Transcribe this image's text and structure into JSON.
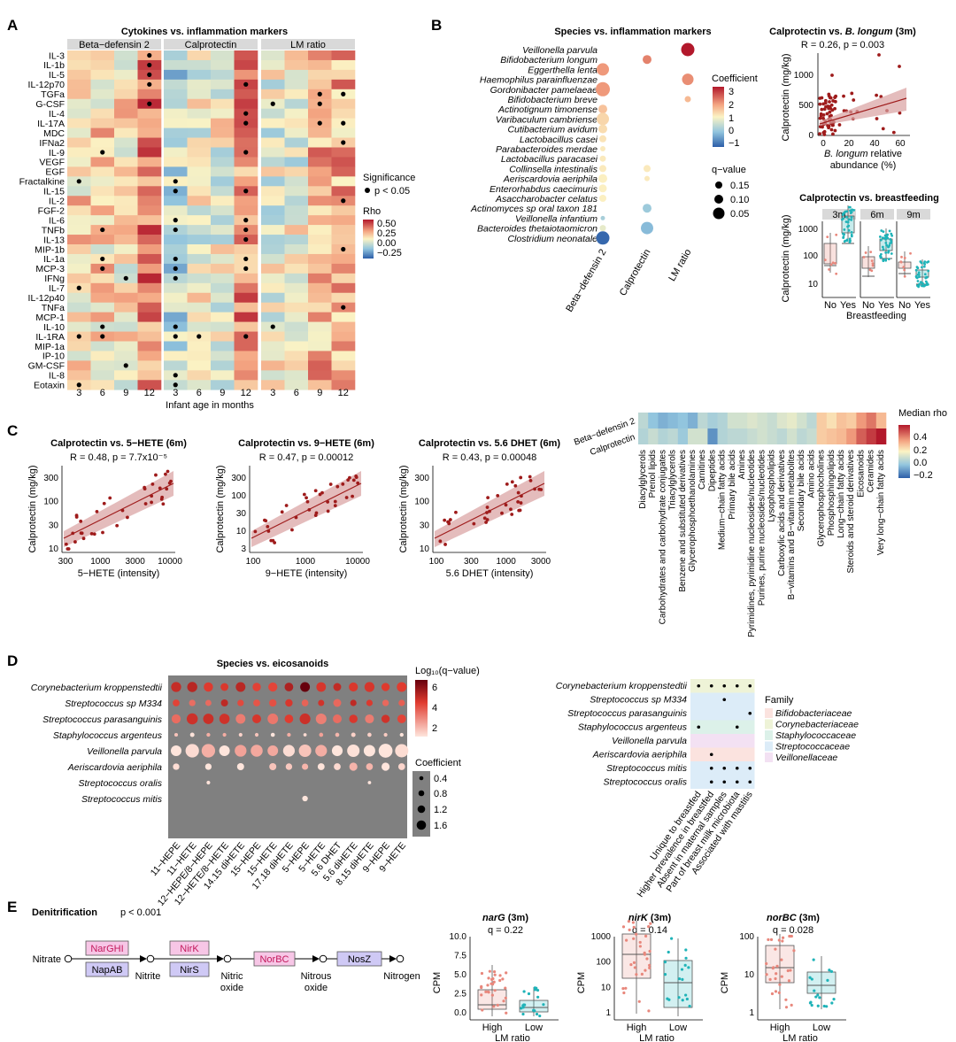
{
  "panels": {
    "A": {
      "letter": "A",
      "title": "Cytokines vs. inflammation markers",
      "facets": [
        "Beta−defensin 2",
        "Calprotectin",
        "LM ratio"
      ],
      "rows": [
        "IL-3",
        "IL-1b",
        "IL-5",
        "IL-12p70",
        "TGFa",
        "G-CSF",
        "IL-4",
        "IL-17A",
        "MDC",
        "IFNa2",
        "IL-9",
        "VEGF",
        "EGF",
        "Fractalkine",
        "IL-15",
        "IL-2",
        "FGF-2",
        "IL-6",
        "TNFb",
        "IL-13",
        "MIP-1b",
        "IL-1a",
        "MCP-3",
        "IFNg",
        "IL-7",
        "IL-12p40",
        "TNFa",
        "MCP-1",
        "IL-10",
        "IL-1RA",
        "MIP-1a",
        "IP-10",
        "GM-CSF",
        "IL-8",
        "Eotaxin"
      ],
      "ages": [
        "3",
        "6",
        "9",
        "12"
      ],
      "xlabel": "Infant age in months",
      "significance_title": "Significance",
      "significance_label": "p < 0.05",
      "rho_title": "Rho",
      "rho_ticks": [
        "0.50",
        "0.25",
        "0.00",
        "−0.25"
      ]
    },
    "B": {
      "letter": "B",
      "title": "Species vs. inflammation markers",
      "species": [
        "Veillonella parvula",
        "Bifidobacterium longum",
        "Eggerthella lenta",
        "Haemophilus parainfluenzae",
        "Gordonibacter pamelaeae",
        "Bifidobacterium breve",
        "Actinotignum timonense",
        "Varibaculum cambriense",
        "Cutibacterium avidum",
        "Lactobacillus casei",
        "Parabacteroides merdae",
        "Lactobacillus paracasei",
        "Collinsella intestinalis",
        "Aeriscardovia aeriphila",
        "Enterorhabdus caecimuris",
        "Asaccharobacter celatus",
        "Actinomyces sp oral taxon 181",
        "Veillonella infantium",
        "Bacteroides thetaiotaomicron",
        "Clostridium neonatale"
      ],
      "markers": [
        "Beta−defensin 2",
        "Calprotectin",
        "LM ratio"
      ],
      "coef_title": "Coefficient",
      "coef_ticks": [
        "3",
        "2",
        "1",
        "0",
        "−1"
      ],
      "q_title": "q−value",
      "q_ticks": [
        "0.15",
        "0.10",
        "0.05"
      ]
    },
    "B_scatter": {
      "title_prefix": "Calprotectin vs. ",
      "title_species": "B. longum",
      "title_suffix": " (3m)",
      "stat": "R = 0.26, p = 0.003",
      "ylabel": "Calprotectin (mg/kg)",
      "xlabel_italic": "B. longum",
      "xlabel_rest": " relative",
      "xlabel2": "abundance (%)",
      "xticks": [
        "0",
        "20",
        "40",
        "60"
      ],
      "yticks": [
        "0",
        "500",
        "1000"
      ]
    },
    "B_box": {
      "title": "Calprotectin vs. breastfeeding",
      "facets": [
        "3m",
        "6m",
        "9m"
      ],
      "groups": [
        "No",
        "Yes"
      ],
      "ylabel": "Calprotectin (mg/kg)",
      "xlabel": "Breastfeeding",
      "yticks": [
        "1000",
        "100",
        "10"
      ]
    },
    "C": {
      "letter": "C",
      "scatters": [
        {
          "title": "Calprotectin vs. 5−HETE (6m)",
          "stat": "R = 0.48, p = 7.7x10⁻⁵",
          "xlabel": "5−HETE (intensity)",
          "xticks": [
            "300",
            "1000",
            "3000",
            "10000"
          ],
          "yticks": [
            "300",
            "100",
            "30",
            "10"
          ]
        },
        {
          "title": "Calprotectin vs. 9−HETE (6m)",
          "stat": "R = 0.47, p = 0.00012",
          "xlabel": "9−HETE (intensity)",
          "xticks": [
            "100",
            "1000",
            "10000"
          ],
          "yticks": [
            "300",
            "100",
            "30",
            "10",
            "3"
          ]
        },
        {
          "title": "Calprotectin vs. 5.6 DHET (6m)",
          "stat": "R = 0.43, p = 0.00048",
          "xlabel": "5.6 DHET (intensity)",
          "xticks": [
            "100",
            "300",
            "1000",
            "3000"
          ],
          "yticks": [
            "300",
            "100",
            "30",
            "10"
          ]
        }
      ],
      "ylabel": "Calprotectin (mg/kg)",
      "heat_rows": [
        "Beta−defensin 2",
        "Calprotectin"
      ],
      "heat_cols": [
        "Diacylglycerols",
        "Prenol lipids",
        "Carbohydrates and carbohydrate conjugates",
        "Triacylglycerols",
        "Benzene and substituted derivatives",
        "Glycerophosphoethanolamines",
        "Carnitines",
        "Dipeptides",
        "Medium−chain fatty acids",
        "Primary bile acids",
        "Amines",
        "Pyrimidines, pyrimidine nucleosides/nucleotides",
        "Purines, purine nucleosides/nucleotides",
        "Lysophospholipids",
        "Carboxylic acids and derivatives",
        "B−vitamins and B−vitamin metabolites",
        "Secondary bile acids",
        "Amino acids",
        "Glycerophosphocholines",
        "Phosphosphingolipids",
        "Long−chain fatty acids",
        "Steroids and steroid derivatives",
        "Eicosanoids",
        "Ceramides",
        "Very long−chain fatty acids"
      ],
      "median_title": "Median rho",
      "median_ticks": [
        "0.4",
        "0.2",
        "0.0",
        "−0.2"
      ]
    },
    "D": {
      "letter": "D",
      "title": "Species vs. eicosanoids",
      "species": [
        "Corynebacterium kroppenstedtii",
        "Streptococcus sp M334",
        "Streptococcus parasanguinis",
        "Staphylococcus argenteus",
        "Veillonella parvula",
        "Aeriscardovia aeriphila",
        "Streptococcus oralis",
        "Streptococcus mitis"
      ],
      "eicosanoids": [
        "11−HEPE",
        "11−HETE",
        "12−HEPE/8−HEPE",
        "12−HETE/8−HETE",
        "14.15 diHETE",
        "15−HEPE",
        "15−HETE",
        "17.18 diHETE",
        "5−HEPE",
        "5−HETE",
        "5.6 DHET",
        "5.6 diHETE",
        "8.15 diHETE",
        "9−HEPE",
        "9−HETE"
      ],
      "q_title": "Log₁₀(q−value)",
      "q_ticks": [
        "6",
        "4",
        "2"
      ],
      "coef_title": "Coefficient",
      "coef_ticks": [
        "0.4",
        "0.8",
        "1.2",
        "1.6"
      ],
      "trait_species": [
        "Corynebacterium kroppenstedtii",
        "Streptococcus sp M334",
        "Streptococcus parasanguinis",
        "Staphylococcus argenteus",
        "Veillonella parvula",
        "Aeriscardovia aeriphila",
        "Streptococcus mitis",
        "Streptococcus oralis"
      ],
      "traits": [
        "Unique to breastfed",
        "Higher prevalence in breastfed",
        "Absent in maternal samples",
        "Part of breast milk microbiota",
        "Associated with mastitis"
      ],
      "family_title": "Family",
      "families": [
        "Bifidobacteriaceae",
        "Corynebacteriaceae",
        "Staphylococcaceae",
        "Streptococcaceae",
        "Veillonellaceae"
      ],
      "family_colors": [
        "#fbe3df",
        "#eef3d7",
        "#dcf1e9",
        "#dcecf8",
        "#f3e1f3"
      ]
    },
    "E": {
      "letter": "E",
      "title": "Denitrification",
      "pvalue": "p < 0.001",
      "compounds": [
        "Nitrate",
        "Nitrite",
        "Nitric oxide",
        "Nitrous oxide",
        "Nitrogen"
      ],
      "enzymes_top": [
        "NarGHI",
        "NirK",
        "NorBC",
        "NosZ"
      ],
      "enzymes_bottom": [
        "NapAB",
        "NirS"
      ],
      "boxes": [
        {
          "gene": "narG",
          "period": " (3m)",
          "q": "q = 0.22",
          "yticks": [
            "10.0",
            "7.5",
            "5.0",
            "2.5",
            "0.0"
          ]
        },
        {
          "gene": "nirK",
          "period": " (3m)",
          "q": "q = 0.14",
          "yticks": [
            "1000",
            "100",
            "10",
            "1"
          ]
        },
        {
          "gene": "norBC",
          "period": " (3m)",
          "q": "q = 0.028",
          "yticks": [
            "100",
            "10",
            "1"
          ]
        }
      ],
      "ylabel": "CPM",
      "groups": [
        "High",
        "Low"
      ],
      "xlabel": "LM ratio"
    }
  },
  "colors": {
    "high": "#b2182b",
    "low": "#2166ac",
    "no_group": "#e8877c",
    "yes_group": "#1fb3b8",
    "dot": "#9e1b1b",
    "grey_panel": "#808080",
    "facet_strip": "#d9d9d9"
  }
}
